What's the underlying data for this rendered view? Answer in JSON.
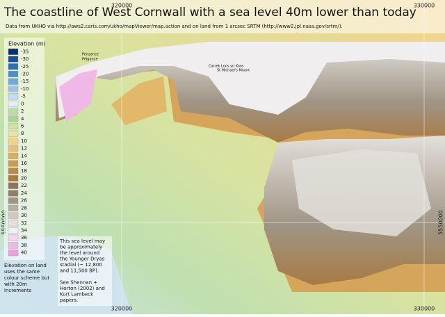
{
  "title": "The coastline of West Cornwall with a sea level 40m lower than today",
  "subtitle": "Data from UKHO via http://aws2.caris.com/ukho/mapViewer/map.action and on land from 1 arcsec SRTM (http://www2.jpl.nasa.gov/srtm/).",
  "grid_labels": {
    "x_top": [
      "320000",
      "330000"
    ],
    "x_bottom": [
      "320000",
      "330000"
    ],
    "y_left": "5550000",
    "y_right": "5550000"
  },
  "places": [
    "Penzance",
    "Pelgance",
    "St Michael's Mount",
    "Carrek Loos yn Koos"
  ],
  "legend": {
    "title": "Elevation (m)",
    "entries": [
      {
        "value": -35,
        "color": "#0b2f6b"
      },
      {
        "value": -30,
        "color": "#1a4f93"
      },
      {
        "value": -25,
        "color": "#2e6fb0"
      },
      {
        "value": -20,
        "color": "#4b8ec8"
      },
      {
        "value": -15,
        "color": "#72aad8"
      },
      {
        "value": -10,
        "color": "#9cc4e4"
      },
      {
        "value": -5,
        "color": "#c4dcef"
      },
      {
        "value": 0,
        "color": "#e6eff5"
      },
      {
        "value": 2,
        "color": "#b9dca8"
      },
      {
        "value": 4,
        "color": "#a8d392"
      },
      {
        "value": 6,
        "color": "#cfe3a0"
      },
      {
        "value": 8,
        "color": "#e9e2a0"
      },
      {
        "value": 10,
        "color": "#f2d38a"
      },
      {
        "value": 12,
        "color": "#e8c074"
      },
      {
        "value": 14,
        "color": "#dcae60"
      },
      {
        "value": 16,
        "color": "#cf9c4e"
      },
      {
        "value": 18,
        "color": "#bd8a42"
      },
      {
        "value": 20,
        "color": "#a87a44"
      },
      {
        "value": 22,
        "color": "#957358"
      },
      {
        "value": 24,
        "color": "#8e7e6c"
      },
      {
        "value": 26,
        "color": "#a09585"
      },
      {
        "value": 28,
        "color": "#b7afa4"
      },
      {
        "value": 30,
        "color": "#cfc9c2"
      },
      {
        "value": 32,
        "color": "#e3dfdb"
      },
      {
        "value": 34,
        "color": "#f1eef0"
      },
      {
        "value": 36,
        "color": "#f4d7ee"
      },
      {
        "value": 38,
        "color": "#f0b8e4"
      },
      {
        "value": 40,
        "color": "#e9a3da"
      }
    ]
  },
  "land_note": [
    "Elevation on land",
    "uses the same",
    "colour scheme but",
    "with 20m",
    "increments"
  ],
  "sea_note": [
    "This sea level may",
    "be approximately",
    "the level around",
    "the Younger Dryas",
    "stadial (~  12,800",
    "and 11,500 BP).",
    "",
    "See Shennan +",
    "Horton (2002) and",
    "Kurt Lambeck",
    "papers."
  ]
}
